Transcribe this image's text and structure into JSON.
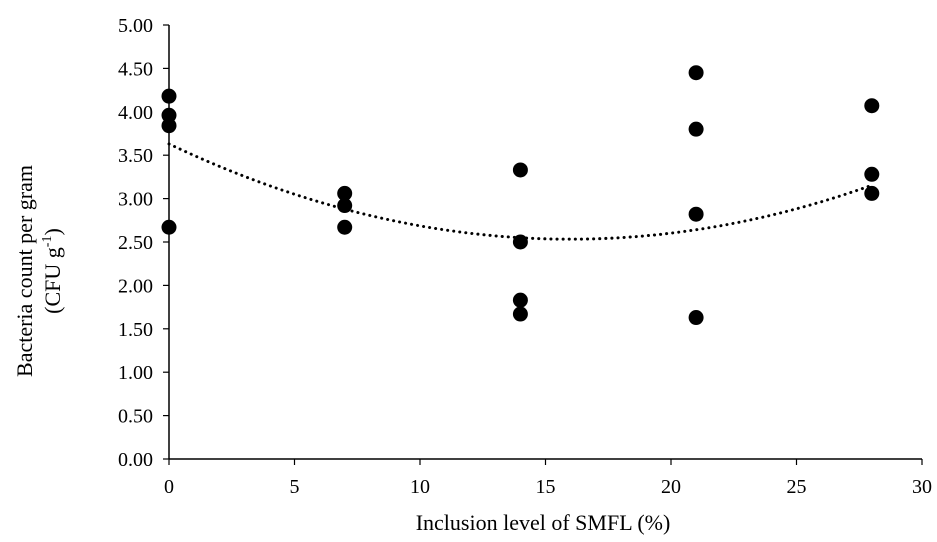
{
  "chart_data": {
    "type": "scatter",
    "title": "",
    "xlabel": "Inclusion level of  SMFL (%)",
    "ylabel_line1": "Bacteria count per gram",
    "ylabel_line2_prefix": "(CFU g",
    "ylabel_line2_superscript": "-1",
    "ylabel_line2_suffix": ")",
    "xlim": [
      0,
      30
    ],
    "ylim": [
      0,
      5
    ],
    "x_ticks": [
      0,
      5,
      10,
      15,
      20,
      25,
      30
    ],
    "x_tick_labels": [
      "0",
      "5",
      "10",
      "15",
      "20",
      "25",
      "30"
    ],
    "y_ticks": [
      0,
      0.5,
      1,
      1.5,
      2,
      2.5,
      3,
      3.5,
      4,
      4.5,
      5
    ],
    "y_tick_labels": [
      "0.00",
      "0.50",
      "1.00",
      "1.50",
      "2.00",
      "2.50",
      "3.00",
      "3.50",
      "4.00",
      "4.50",
      "5.00"
    ],
    "grid": false,
    "legend": "none",
    "series": [
      {
        "marker_color": "#000000",
        "points": [
          {
            "x": 0,
            "y": 4.18
          },
          {
            "x": 0,
            "y": 3.96
          },
          {
            "x": 0,
            "y": 3.84
          },
          {
            "x": 0,
            "y": 2.67
          },
          {
            "x": 7,
            "y": 3.06
          },
          {
            "x": 7,
            "y": 2.92
          },
          {
            "x": 7,
            "y": 2.67
          },
          {
            "x": 14,
            "y": 3.33
          },
          {
            "x": 14,
            "y": 2.5
          },
          {
            "x": 14,
            "y": 1.83
          },
          {
            "x": 14,
            "y": 1.67
          },
          {
            "x": 21,
            "y": 4.45
          },
          {
            "x": 21,
            "y": 3.8
          },
          {
            "x": 21,
            "y": 2.82
          },
          {
            "x": 21,
            "y": 1.63
          },
          {
            "x": 28,
            "y": 4.07
          },
          {
            "x": 28,
            "y": 3.28
          },
          {
            "x": 28,
            "y": 3.06
          }
        ]
      }
    ],
    "trendline": {
      "type": "polynomial",
      "order": 2,
      "style": "dotted",
      "color": "#000000",
      "x_range": [
        0,
        28
      ],
      "coefficients": [
        3.63,
        -0.1374,
        0.0043
      ]
    }
  }
}
